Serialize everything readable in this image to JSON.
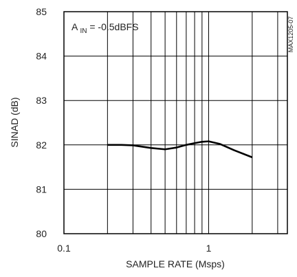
{
  "chart_data": {
    "type": "line",
    "title": "",
    "xlabel": "SAMPLE RATE (Msps)",
    "ylabel": "SINAD (dB)",
    "xscale": "log",
    "xlim": [
      0.1,
      3.5
    ],
    "ylim": [
      80,
      85
    ],
    "grid": true,
    "x_ticks": [
      {
        "value": 0.1,
        "label": "0.1"
      },
      {
        "value": 1,
        "label": "1"
      }
    ],
    "x_grid": [
      0.2,
      0.3,
      0.4,
      0.5,
      0.6,
      0.7,
      0.8,
      0.9,
      1,
      2,
      3
    ],
    "y_ticks": [
      {
        "value": 80,
        "label": "80"
      },
      {
        "value": 81,
        "label": "81"
      },
      {
        "value": 82,
        "label": "82"
      },
      {
        "value": 83,
        "label": "83"
      },
      {
        "value": 84,
        "label": "84"
      },
      {
        "value": 85,
        "label": "85"
      }
    ],
    "annotation": {
      "main": "A",
      "sub": "IN",
      "rest": " = -0.5dBFS"
    },
    "figure_id": "MAX1205-07",
    "series": [
      {
        "x": [
          0.2,
          0.25,
          0.3,
          0.4,
          0.5,
          0.6,
          0.7,
          0.8,
          0.9,
          1.0,
          1.2,
          1.5,
          2.0
        ],
        "y": [
          82.0,
          82.0,
          81.99,
          81.93,
          81.9,
          81.94,
          82.0,
          82.04,
          82.07,
          82.08,
          82.02,
          81.88,
          81.72
        ]
      }
    ]
  }
}
